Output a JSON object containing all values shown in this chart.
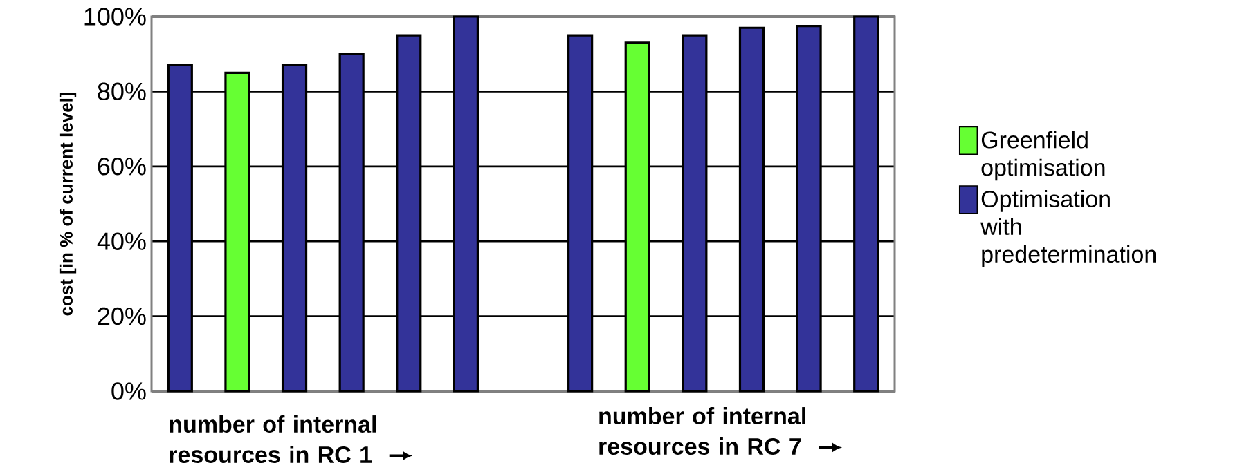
{
  "chart_data": {
    "type": "bar",
    "ylabel": "cost [in % of current level]",
    "categories": [
      null,
      null,
      null,
      null,
      null,
      null,
      null,
      null,
      null,
      null,
      null,
      null,
      null
    ],
    "series": [
      {
        "name": "Greenfield optimisation",
        "color": "#66ff33",
        "values": [
          null,
          85,
          null,
          null,
          null,
          null,
          null,
          null,
          93,
          null,
          null,
          null,
          null
        ]
      },
      {
        "name": "Optimisation with predetermination",
        "color": "#333399",
        "values": [
          87,
          null,
          87,
          90,
          95,
          100,
          null,
          95,
          null,
          95,
          97,
          97.5,
          100
        ]
      }
    ],
    "ylim": [
      0,
      100
    ],
    "yticks": [
      {
        "value": 0,
        "label": "0%"
      },
      {
        "value": 20,
        "label": "20%"
      },
      {
        "value": 40,
        "label": "40%"
      },
      {
        "value": 60,
        "label": "60%"
      },
      {
        "value": 80,
        "label": "80%"
      },
      {
        "value": 100,
        "label": "100%"
      }
    ],
    "grid": "y",
    "legend": "right",
    "tick_labels": "y",
    "annotations": [
      "number of internal resources in RC 1",
      "number of internal resources in RC 7"
    ]
  }
}
